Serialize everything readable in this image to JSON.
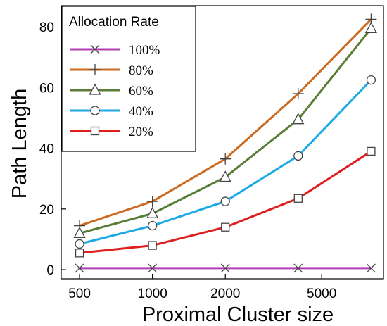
{
  "chart_data": {
    "type": "line",
    "title": "",
    "xlabel": "Proximal Cluster size",
    "ylabel": "Path Length",
    "x_scale": "log",
    "x_ticks": [
      500,
      1000,
      2000,
      5000
    ],
    "x_tick_labels": [
      "500",
      "1000",
      "2000",
      "5000"
    ],
    "xlim": [
      420,
      9000
    ],
    "ylim": [
      -3,
      87
    ],
    "y_ticks": [
      0,
      20,
      40,
      60,
      80
    ],
    "y_tick_labels": [
      "0",
      "20",
      "40",
      "60",
      "80"
    ],
    "grid": false,
    "legend": {
      "title": "Allocation Rate",
      "placement": "top-left"
    },
    "x": [
      500,
      1000,
      2000,
      4000,
      8000
    ],
    "series": [
      {
        "name": "100%",
        "values": [
          0.5,
          0.5,
          0.5,
          0.5,
          0.5
        ],
        "color": "#b03fb3",
        "marker": "x"
      },
      {
        "name": "80%",
        "values": [
          14.5,
          22.5,
          36.5,
          58,
          82.5
        ],
        "color": "#cc6a1f",
        "marker": "plus"
      },
      {
        "name": "60%",
        "values": [
          12,
          18.5,
          30.5,
          49.5,
          79.5
        ],
        "color": "#5a7d35",
        "marker": "triangle"
      },
      {
        "name": "40%",
        "values": [
          8.5,
          14.5,
          22.5,
          37.5,
          62.5
        ],
        "color": "#1ca9e6",
        "marker": "circle"
      },
      {
        "name": "20%",
        "values": [
          5.5,
          8,
          14,
          23.5,
          39
        ],
        "color": "#e01e1e",
        "marker": "square"
      }
    ]
  }
}
